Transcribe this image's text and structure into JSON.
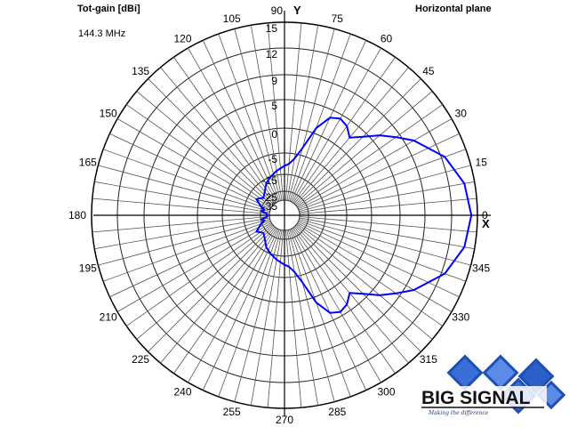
{
  "header": {
    "title": "Tot-gain [dBi]",
    "frequency": "144.3 MHz",
    "plane": "Horizontal plane"
  },
  "logo": {
    "name": "BIG SIGNAL",
    "tagline": "Making the difference",
    "color": "#1f4fb4"
  },
  "chart_data": {
    "type": "polar",
    "title": "Tot-gain [dBi]",
    "angle_labels": [
      "0",
      "15",
      "30",
      "45",
      "60",
      "75",
      "90",
      "105",
      "120",
      "135",
      "150",
      "165",
      "180",
      "195",
      "210",
      "225",
      "240",
      "255",
      "270",
      "285",
      "300",
      "315",
      "330",
      "345"
    ],
    "radial_labels": [
      "15",
      "12",
      "9",
      "5",
      "0",
      "-5",
      "-15",
      "-25",
      "-35"
    ],
    "radial_levels": [
      15,
      12,
      9,
      5,
      0,
      -5,
      -15,
      -25,
      -35
    ],
    "axis_labels": {
      "x": "X",
      "y": "Y"
    },
    "grid": true,
    "series": [
      {
        "color": "#0000ff",
        "angles": [
          0,
          10,
          20,
          30,
          35,
          40,
          45,
          50,
          55,
          60,
          65,
          70,
          75,
          80,
          85,
          90,
          100,
          110,
          120,
          130,
          140,
          150,
          160,
          165,
          170,
          175,
          180,
          185,
          190,
          195,
          200,
          210,
          220,
          230,
          240,
          250,
          260,
          270,
          275,
          280,
          285,
          290,
          295,
          300,
          305,
          310,
          315,
          320,
          325,
          330,
          340,
          350
        ],
        "values": [
          14.3,
          13.8,
          12.4,
          10.0,
          8.3,
          6.4,
          4.2,
          2.5,
          3.8,
          4.3,
          3.6,
          1.0,
          -3.5,
          -7.2,
          -10.0,
          -11.0,
          -13.0,
          -15.0,
          -17.5,
          -21.0,
          -23.0,
          -20.0,
          -24.5,
          -28.5,
          -26.0,
          -32.0,
          -32.5,
          -32.0,
          -26.0,
          -28.5,
          -24.5,
          -20.0,
          -23.0,
          -21.0,
          -17.5,
          -15.0,
          -13.0,
          -11.0,
          -10.0,
          -7.2,
          -3.5,
          1.0,
          3.6,
          4.3,
          3.8,
          2.5,
          4.2,
          6.4,
          8.3,
          10.0,
          12.4,
          13.8
        ]
      }
    ]
  }
}
